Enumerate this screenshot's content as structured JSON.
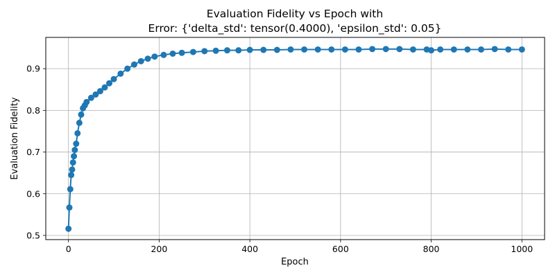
{
  "chart_data": {
    "type": "line",
    "title_line1": "Evaluation Fidelity vs Epoch with",
    "title_line2": "Error: {'delta_std': tensor(0.4000), 'epsilon_std': 0.05}",
    "xlabel": "Epoch",
    "ylabel": "Evaluation Fidelity",
    "xlim": [
      -50,
      1050
    ],
    "ylim": [
      0.49,
      0.975
    ],
    "xticks": [
      0,
      200,
      400,
      600,
      800,
      1000
    ],
    "xtick_labels": [
      "0",
      "200",
      "400",
      "600",
      "800",
      "1000"
    ],
    "yticks": [
      0.5,
      0.6,
      0.7,
      0.8,
      0.9
    ],
    "ytick_labels": [
      "0.5",
      "0.6",
      "0.7",
      "0.8",
      "0.9"
    ],
    "grid": true,
    "marker": "circle",
    "color": "#1f77b4",
    "series": [
      {
        "x": [
          0,
          2,
          4,
          6,
          8,
          10,
          12,
          14,
          17,
          20,
          24,
          28,
          32,
          36,
          40,
          50,
          60,
          70,
          80,
          90,
          100,
          115,
          130,
          145,
          160,
          175,
          190,
          210,
          230,
          250,
          275,
          300,
          325,
          350,
          375,
          400,
          430,
          460,
          490,
          520,
          550,
          580,
          610,
          640,
          670,
          700,
          730,
          760,
          790,
          800,
          820,
          850,
          880,
          910,
          940,
          970,
          1000
        ],
        "y": [
          0.516,
          0.567,
          0.611,
          0.645,
          0.658,
          0.675,
          0.69,
          0.705,
          0.72,
          0.745,
          0.77,
          0.79,
          0.805,
          0.812,
          0.82,
          0.83,
          0.838,
          0.846,
          0.855,
          0.865,
          0.875,
          0.888,
          0.9,
          0.91,
          0.918,
          0.924,
          0.929,
          0.933,
          0.936,
          0.938,
          0.94,
          0.942,
          0.943,
          0.944,
          0.944,
          0.945,
          0.945,
          0.945,
          0.946,
          0.946,
          0.946,
          0.946,
          0.946,
          0.946,
          0.947,
          0.947,
          0.947,
          0.946,
          0.946,
          0.944,
          0.946,
          0.946,
          0.946,
          0.946,
          0.947,
          0.946,
          0.946
        ]
      }
    ]
  }
}
